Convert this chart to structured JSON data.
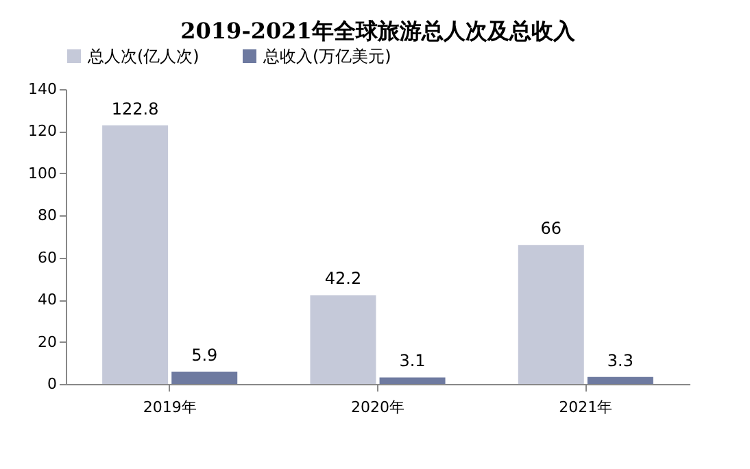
{
  "chart_data": {
    "type": "bar",
    "title": "2019-2021年全球旅游总人次及总收入",
    "categories": [
      "2019年",
      "2020年",
      "2021年"
    ],
    "series": [
      {
        "name": "总人次(亿人次)",
        "color": "#c5c9d9",
        "values": [
          122.8,
          42.2,
          66
        ]
      },
      {
        "name": "总收入(万亿美元)",
        "color": "#6e7aa0",
        "values": [
          5.9,
          3.1,
          3.3
        ]
      }
    ],
    "ylim": [
      0,
      140
    ],
    "yticks": [
      0,
      20,
      40,
      60,
      80,
      100,
      120,
      140
    ],
    "data_labels": true,
    "grid": false,
    "legend": "top"
  }
}
